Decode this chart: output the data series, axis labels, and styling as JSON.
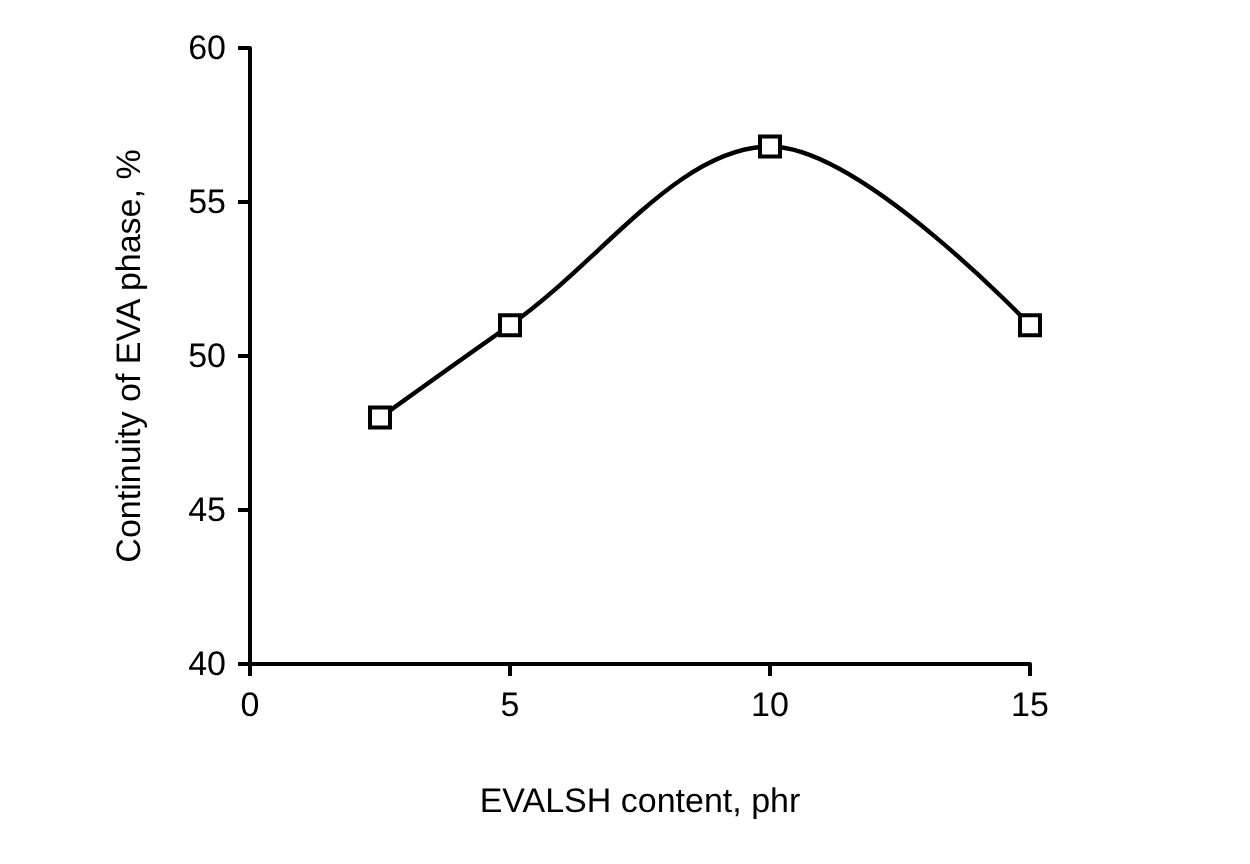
{
  "chart_data": {
    "type": "line",
    "xlabel": "EVALSH content, phr",
    "ylabel": "Continuity of EVA phase, %",
    "x": [
      2.5,
      5,
      10,
      15
    ],
    "series": [
      {
        "color": "#000000",
        "values": [
          48,
          51,
          56.8,
          51
        ]
      }
    ],
    "xlim": [
      0,
      15
    ],
    "xticks": [
      0,
      5,
      10,
      15
    ],
    "ylim": [
      40,
      60
    ],
    "yticks": [
      40,
      45,
      50,
      55,
      60
    ],
    "marker": "square",
    "line_style": "solid"
  }
}
